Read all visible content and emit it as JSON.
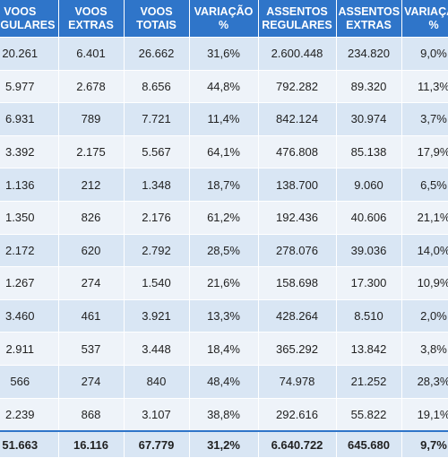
{
  "table": {
    "headers": [
      "VOOS\nREGULARES",
      "VOOS\nEXTRAS",
      "VOOS\nTOTAIS",
      "VARIAÇÃO\n%",
      "ASSENTOS\nREGULARES",
      "ASSENTOS\nEXTRAS",
      "VARIAÇÃO\n%"
    ],
    "rows": [
      [
        "20.261",
        "6.401",
        "26.662",
        "31,6%",
        "2.600.448",
        "234.820",
        "9,0%"
      ],
      [
        "5.977",
        "2.678",
        "8.656",
        "44,8%",
        "792.282",
        "89.320",
        "11,3%"
      ],
      [
        "6.931",
        "789",
        "7.721",
        "11,4%",
        "842.124",
        "30.974",
        "3,7%"
      ],
      [
        "3.392",
        "2.175",
        "5.567",
        "64,1%",
        "476.808",
        "85.138",
        "17,9%"
      ],
      [
        "1.136",
        "212",
        "1.348",
        "18,7%",
        "138.700",
        "9.060",
        "6,5%"
      ],
      [
        "1.350",
        "826",
        "2.176",
        "61,2%",
        "192.436",
        "40.606",
        "21,1%"
      ],
      [
        "2.172",
        "620",
        "2.792",
        "28,5%",
        "278.076",
        "39.036",
        "14,0%"
      ],
      [
        "1.267",
        "274",
        "1.540",
        "21,6%",
        "158.698",
        "17.300",
        "10,9%"
      ],
      [
        "3.460",
        "461",
        "3.921",
        "13,3%",
        "428.264",
        "8.510",
        "2,0%"
      ],
      [
        "2.911",
        "537",
        "3.448",
        "18,4%",
        "365.292",
        "13.842",
        "3,8%"
      ],
      [
        "566",
        "274",
        "840",
        "48,4%",
        "74.978",
        "21.252",
        "28,3%"
      ],
      [
        "2.239",
        "868",
        "3.107",
        "38,8%",
        "292.616",
        "55.822",
        "19,1%"
      ]
    ],
    "total": [
      "51.663",
      "16.116",
      "67.779",
      "31,2%",
      "6.640.722",
      "645.680",
      "9,7%"
    ]
  },
  "colors": {
    "header_bg": "#2f75c9",
    "header_text": "#ffffff",
    "row_odd": "#d9e6f4",
    "row_even": "#eef3f9"
  }
}
